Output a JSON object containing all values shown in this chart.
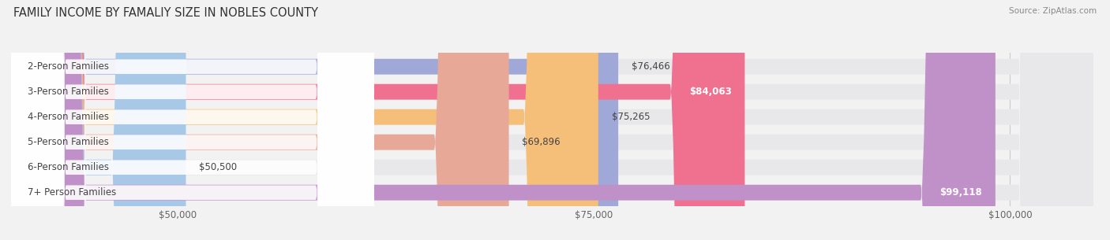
{
  "title": "FAMILY INCOME BY FAMALIY SIZE IN NOBLES COUNTY",
  "source": "Source: ZipAtlas.com",
  "categories": [
    "2-Person Families",
    "3-Person Families",
    "4-Person Families",
    "5-Person Families",
    "6-Person Families",
    "7+ Person Families"
  ],
  "values": [
    76466,
    84063,
    75265,
    69896,
    50500,
    99118
  ],
  "bar_colors": [
    "#a0a8d8",
    "#f07090",
    "#f5bf7a",
    "#e8a898",
    "#a8c8e8",
    "#c090c8"
  ],
  "value_labels": [
    "$76,466",
    "$84,063",
    "$75,265",
    "$69,896",
    "$50,500",
    "$99,118"
  ],
  "value_inside": [
    false,
    true,
    false,
    false,
    false,
    true
  ],
  "xlim_min": 40000,
  "xlim_max": 105000,
  "xticks": [
    50000,
    75000,
    100000
  ],
  "xtick_labels": [
    "$50,000",
    "$75,000",
    "$100,000"
  ],
  "background_color": "#f2f2f2",
  "bar_bg_color": "#e8e8eb",
  "title_fontsize": 10.5,
  "source_fontsize": 7.5,
  "label_fontsize": 8.5,
  "value_fontsize": 8.5,
  "bar_height": 0.62,
  "figsize": [
    14.06,
    3.05
  ]
}
